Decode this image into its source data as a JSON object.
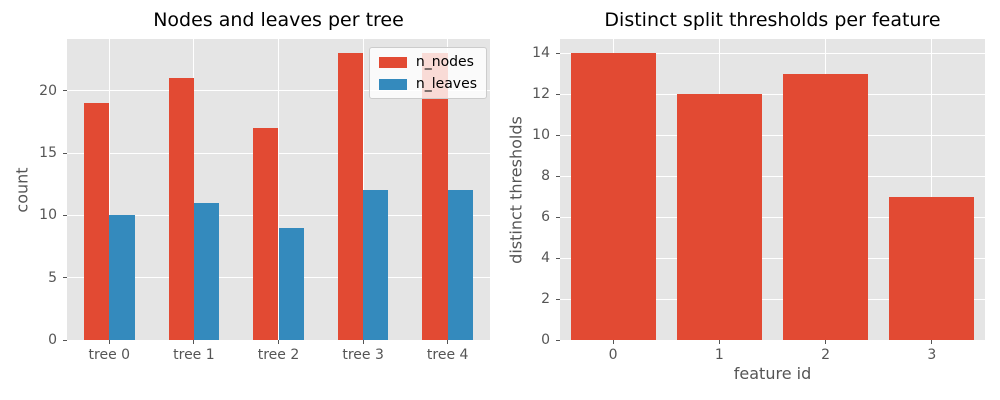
{
  "style": {
    "axes_bg": "#e5e5e5",
    "grid_color": "#ffffff",
    "tick_color": "#555555",
    "label_color": "#555555",
    "title_color": "#000000",
    "legend_bg": "rgba(255,255,255,0.8)",
    "legend_border": "#cccccc",
    "legend_text_color": "#000000",
    "bar_red": "#E24A33",
    "bar_blue": "#348ABD"
  },
  "chart_data": [
    {
      "type": "bar",
      "title": "Nodes and leaves per tree",
      "xlabel": "",
      "ylabel": "count",
      "categories": [
        "tree 0",
        "tree 1",
        "tree 2",
        "tree 3",
        "tree 4"
      ],
      "series": [
        {
          "name": "n_nodes",
          "color": "#E24A33",
          "values": [
            19,
            21,
            17,
            23,
            23
          ]
        },
        {
          "name": "n_leaves",
          "color": "#348ABD",
          "values": [
            10,
            11,
            9,
            12,
            12
          ]
        }
      ],
      "ylim": [
        0,
        24.15
      ],
      "yticks": [
        0,
        5,
        10,
        15,
        20
      ],
      "grid": true,
      "legend": {
        "location": "upper right",
        "labels": [
          "n_nodes",
          "n_leaves"
        ]
      }
    },
    {
      "type": "bar",
      "title": "Distinct split thresholds per feature",
      "xlabel": "feature id",
      "ylabel": "distinct thresholds",
      "categories": [
        "0",
        "1",
        "2",
        "3"
      ],
      "series": [
        {
          "name": "thresholds",
          "color": "#E24A33",
          "values": [
            14,
            12,
            13,
            7
          ]
        }
      ],
      "ylim": [
        0,
        14.7
      ],
      "yticks": [
        0,
        2,
        4,
        6,
        8,
        10,
        12,
        14
      ],
      "grid": true,
      "legend": null
    }
  ]
}
